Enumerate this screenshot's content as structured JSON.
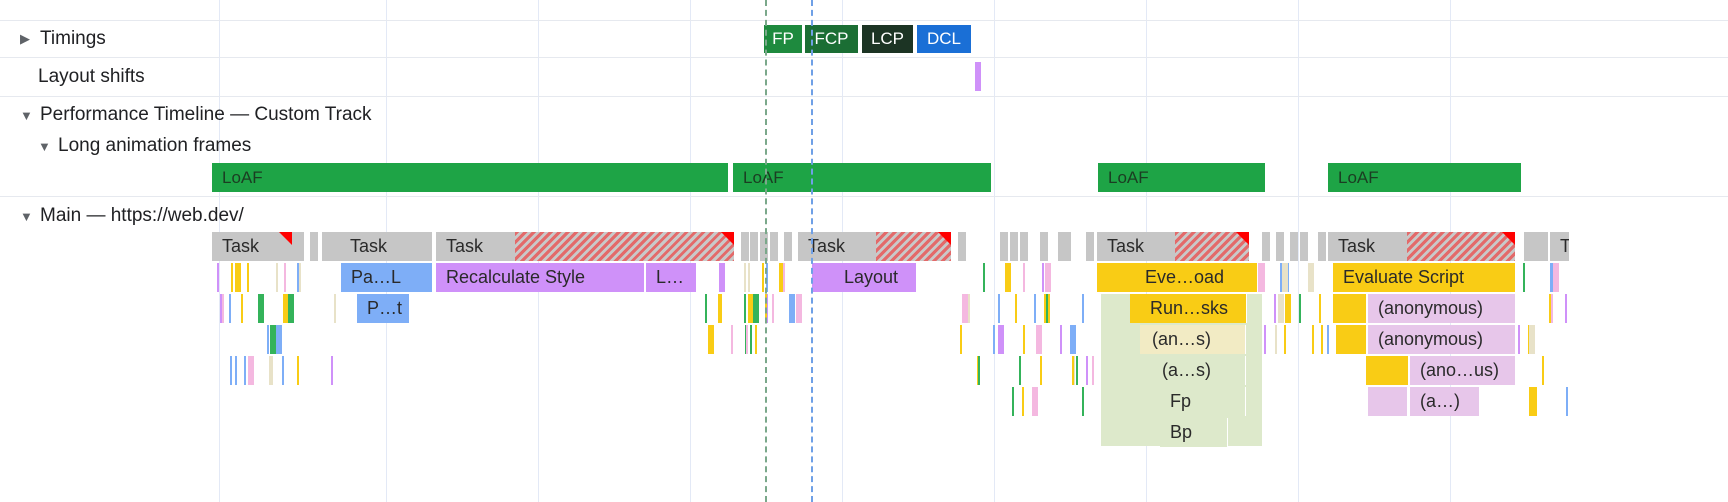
{
  "tracks": {
    "timings": "Timings",
    "layout_shifts": "Layout shifts",
    "custom_track": "Performance Timeline — Custom Track",
    "loaf_group": "Long animation frames",
    "main": "Main — https://web.dev/"
  },
  "timing_markers": [
    {
      "label": "FP",
      "color": "#1e8a3e"
    },
    {
      "label": "FCP",
      "color": "#1b6e34"
    },
    {
      "label": "LCP",
      "color": "#1c3424"
    },
    {
      "label": "DCL",
      "color": "#1a6fd6"
    }
  ],
  "loaf": [
    "LoAF",
    "LoAF",
    "LoAF",
    "LoAF"
  ],
  "tasks": [
    "Task",
    "Task",
    "Task",
    "Task",
    "Task",
    "Task",
    "T"
  ],
  "events": {
    "pa_l": "Pa…L",
    "recalc": "Recalculate Style",
    "l": "L…",
    "layout": "Layout",
    "eve_oad": "Eve…oad",
    "evaluate": "Evaluate Script",
    "p_t": "P…t",
    "run_sks": "Run…sks",
    "anon1": "(anonymous)",
    "an_s": "(an…s)",
    "anon2": "(anonymous)",
    "a_s": "(a…s)",
    "ano_us": "(ano…us)",
    "fp": "Fp",
    "a_dots": "(a…)",
    "bp": "Bp"
  },
  "colors": {
    "task": "#c6c6c6",
    "script": "#f9cc15",
    "rendering": "#cf91f9",
    "painting": "#7eaef7",
    "loaf": "#1ea446",
    "long_task": "#ff0000",
    "anon": "#e7c6ea"
  }
}
